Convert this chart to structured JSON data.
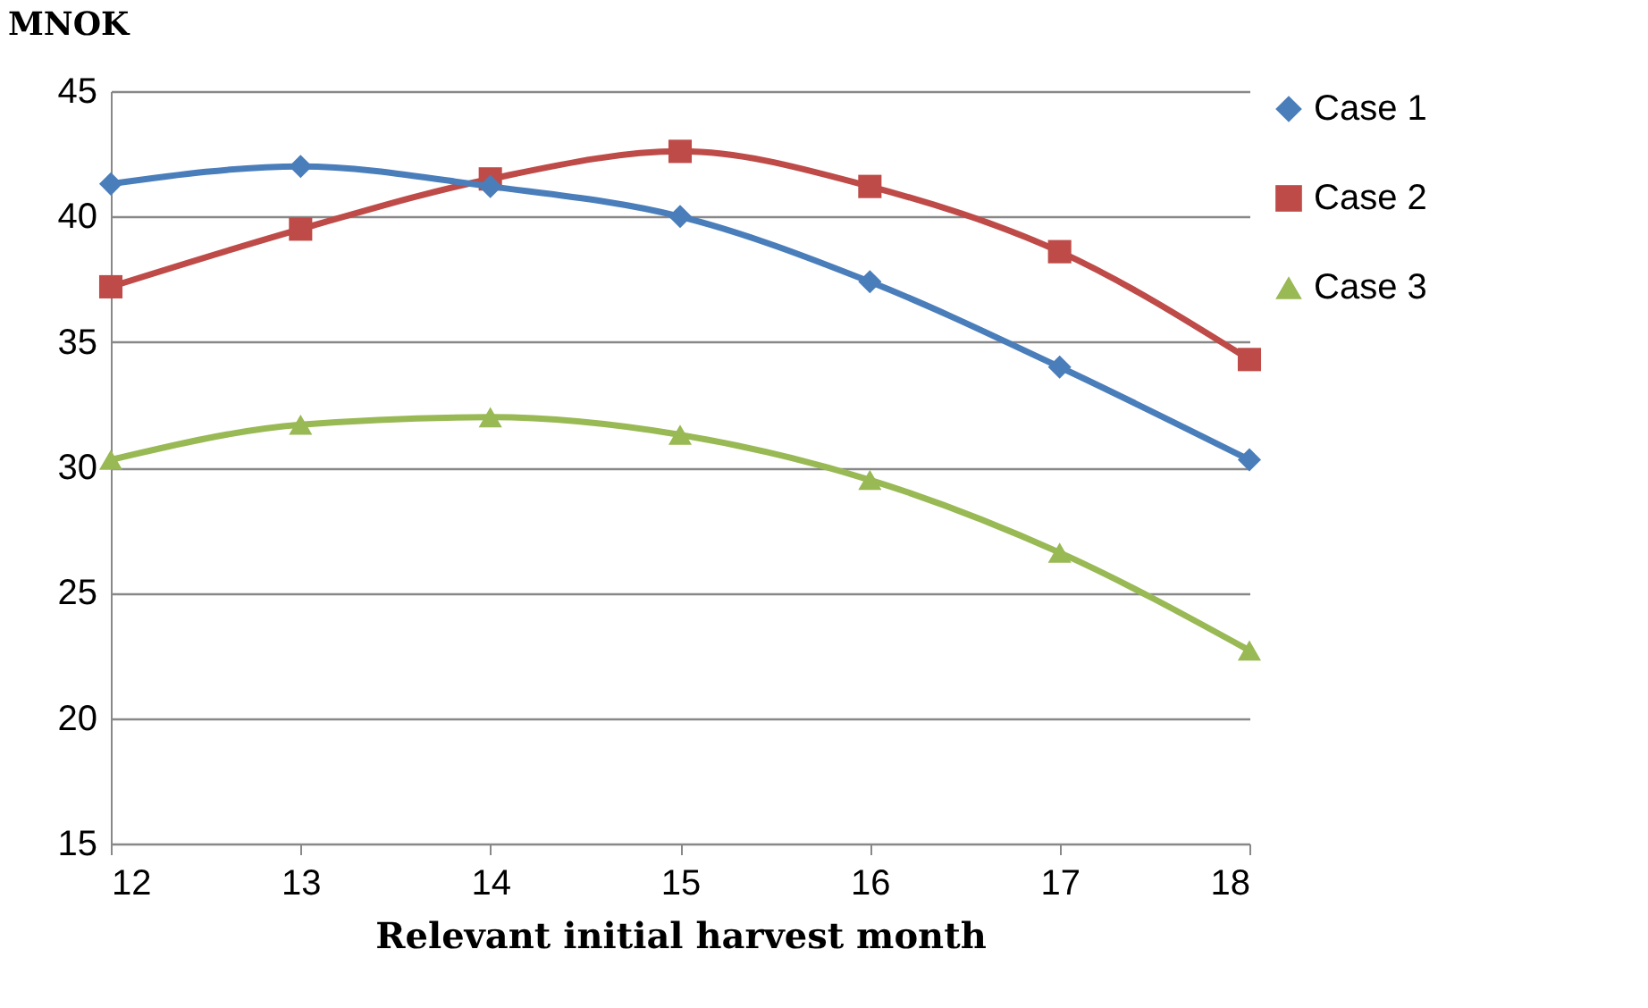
{
  "chart_data": {
    "type": "line",
    "ylabel": "MNOK",
    "xlabel": "Relevant initial harvest month",
    "x": [
      12,
      13,
      14,
      15,
      16,
      17,
      18
    ],
    "xlim": [
      12,
      18
    ],
    "xticks": [
      12,
      13,
      14,
      15,
      16,
      17,
      18
    ],
    "ylim": [
      15,
      45
    ],
    "yticks": [
      15,
      20,
      25,
      30,
      35,
      40,
      45
    ],
    "grid": "y",
    "legend": "right",
    "series": [
      {
        "name": "Case 1",
        "color": "#4a7ebb",
        "marker": "diamond",
        "values": [
          41.3,
          42.0,
          41.2,
          40.0,
          37.4,
          34.0,
          30.3
        ]
      },
      {
        "name": "Case 2",
        "color": "#be4b48",
        "marker": "square",
        "values": [
          37.2,
          39.5,
          41.5,
          42.6,
          41.2,
          38.6,
          34.3
        ]
      },
      {
        "name": "Case 3",
        "color": "#98b954",
        "marker": "triangle",
        "values": [
          30.3,
          31.7,
          32.0,
          31.3,
          29.5,
          26.6,
          22.7
        ]
      }
    ]
  }
}
